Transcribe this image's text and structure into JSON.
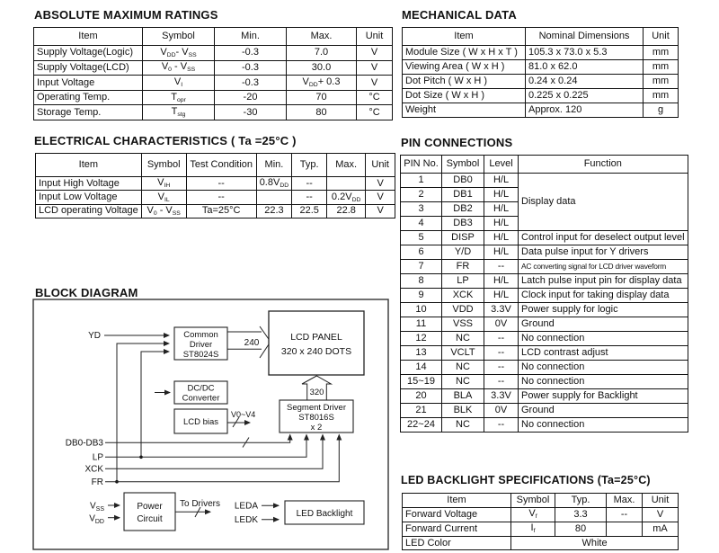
{
  "page": {
    "background": "#ffffff",
    "text_color": "#111111",
    "border_color": "#111111"
  },
  "sections": {
    "abs_max": {
      "title": "ABSOLUTE MAXIMUM RATINGS",
      "table": {
        "header": [
          "Item",
          "Symbol",
          "Min.",
          "Max.",
          "Unit"
        ],
        "rows": [
          [
            "Supply Voltage(Logic)",
            "V~DD~- V~SS~",
            "-0.3",
            "7.0",
            "V"
          ],
          [
            "Supply Voltage(LCD)",
            "V~0~ - V~SS~",
            "-0.3",
            "30.0",
            "V"
          ],
          [
            "Input Voltage",
            "V~I~",
            "-0.3",
            "V~DD~+ 0.3",
            "V"
          ],
          [
            "Operating Temp.",
            "T~opr~",
            "-20",
            "70",
            "°C"
          ],
          [
            "Storage Temp.",
            "T~stg~",
            "-30",
            "80",
            "°C"
          ]
        ]
      }
    },
    "mechanical": {
      "title": "MECHANICAL DATA",
      "table": {
        "header": [
          "Item",
          "Nominal Dimensions",
          "Unit"
        ],
        "rows": [
          [
            "Module Size ( W x H x T )",
            "105.3 x 73.0 x 5.3",
            "mm"
          ],
          [
            "Viewing Area ( W x H )",
            "81.0 x 62.0",
            "mm"
          ],
          [
            "Dot Pitch ( W x H )",
            "0.24 x 0.24",
            "mm"
          ],
          [
            "Dot Size ( W x H )",
            "0.225 x 0.225",
            "mm"
          ],
          [
            "Weight",
            "Approx. 120",
            "g"
          ]
        ]
      }
    },
    "electrical": {
      "title": "ELECTRICAL CHARACTERISTICS ( Ta =25°C )",
      "table": {
        "header": [
          "Item",
          "Symbol",
          "Test Condition",
          "Min.",
          "Typ.",
          "Max.",
          "Unit"
        ],
        "rows": [
          [
            "Input High Voltage",
            "V~IH~",
            "--",
            "0.8V~DD~",
            "--",
            "",
            "V"
          ],
          [
            "Input Low Voltage",
            "V~IL~",
            "--",
            "",
            "--",
            "0.2V~DD~",
            "V"
          ],
          [
            "LCD operating Voltage",
            "V~0~ - V~SS~",
            "Ta=25°C",
            "22.3",
            "22.5",
            "22.8",
            "V"
          ]
        ]
      }
    },
    "pin_connections": {
      "title": "PIN CONNECTIONS",
      "table": {
        "header": [
          "PIN No.",
          "Symbol",
          "Level",
          "Function"
        ],
        "rows": [
          [
            "1",
            "DB0",
            "H/L",
            {
              "text": "Display data",
              "rowspan": 4
            }
          ],
          [
            "2",
            "DB1",
            "H/L"
          ],
          [
            "3",
            "DB2",
            "H/L"
          ],
          [
            "4",
            "DB3",
            "H/L"
          ],
          [
            "5",
            "DISP",
            "H/L",
            "Control input for deselect output level"
          ],
          [
            "6",
            "Y/D",
            "H/L",
            "Data pulse input for Y drivers"
          ],
          [
            "7",
            "FR",
            "--",
            {
              "text": "AC converting signal for LCD driver waveform",
              "small": true
            }
          ],
          [
            "8",
            "LP",
            "H/L",
            "Latch pulse input pin for display data"
          ],
          [
            "9",
            "XCK",
            "H/L",
            "Clock input for taking display data"
          ],
          [
            "10",
            "VDD",
            "3.3V",
            "Power supply for logic"
          ],
          [
            "11",
            "VSS",
            "0V",
            "Ground"
          ],
          [
            "12",
            "NC",
            "--",
            "No connection"
          ],
          [
            "13",
            "VCLT",
            "--",
            "LCD contrast adjust"
          ],
          [
            "14",
            "NC",
            "--",
            "No connection"
          ],
          [
            "15~19",
            "NC",
            "--",
            "No connection"
          ],
          [
            "20",
            "BLA",
            "3.3V",
            "Power supply for Backlight"
          ],
          [
            "21",
            "BLK",
            "0V",
            "Ground"
          ],
          [
            "22~24",
            "NC",
            "--",
            "No connection"
          ]
        ]
      }
    },
    "block_diagram": {
      "title": "BLOCK DIAGRAM"
    },
    "led_backlight": {
      "title": "LED BACKLIGHT SPECIFICATIONS (Ta=25°C)",
      "table": {
        "header": [
          "Item",
          "Symbol",
          "Typ.",
          "Max.",
          "Unit"
        ],
        "rows": [
          [
            "Forward Voltage",
            "V~f~",
            "3.3",
            "--",
            "V"
          ],
          [
            "Forward Current",
            "I~f~",
            "80",
            "",
            "mA"
          ],
          [
            "LED Color",
            {
              "text": "White",
              "colspan": 4,
              "align": "c"
            }
          ]
        ]
      }
    }
  },
  "diagram": {
    "boxes": {
      "common_driver": [
        "Common",
        "Driver",
        "ST8024S"
      ],
      "lcd_panel": [
        "LCD  PANEL",
        "320 x 240 DOTS"
      ],
      "dcdc": [
        "DC/DC",
        "Converter"
      ],
      "lcd_bias": [
        "LCD bias"
      ],
      "segment_driver": [
        "Segment Driver",
        "ST8016S",
        "x 2"
      ],
      "power_circuit": [
        "Power",
        "Circuit"
      ],
      "led_backlight": [
        "LED Backlight"
      ]
    },
    "labels": {
      "yd": "YD",
      "bus240": "240",
      "bus320": "320",
      "v0v4": "V0~V4",
      "db": "DB0-DB3",
      "lp": "LP",
      "xck": "XCK",
      "fr": "FR",
      "vss_base": "V",
      "vss_sub": "SS",
      "vdd_base": "V",
      "vdd_sub": "DD",
      "to_drivers": "To Drivers",
      "leda": "LEDA",
      "ledk": "LEDK"
    }
  }
}
